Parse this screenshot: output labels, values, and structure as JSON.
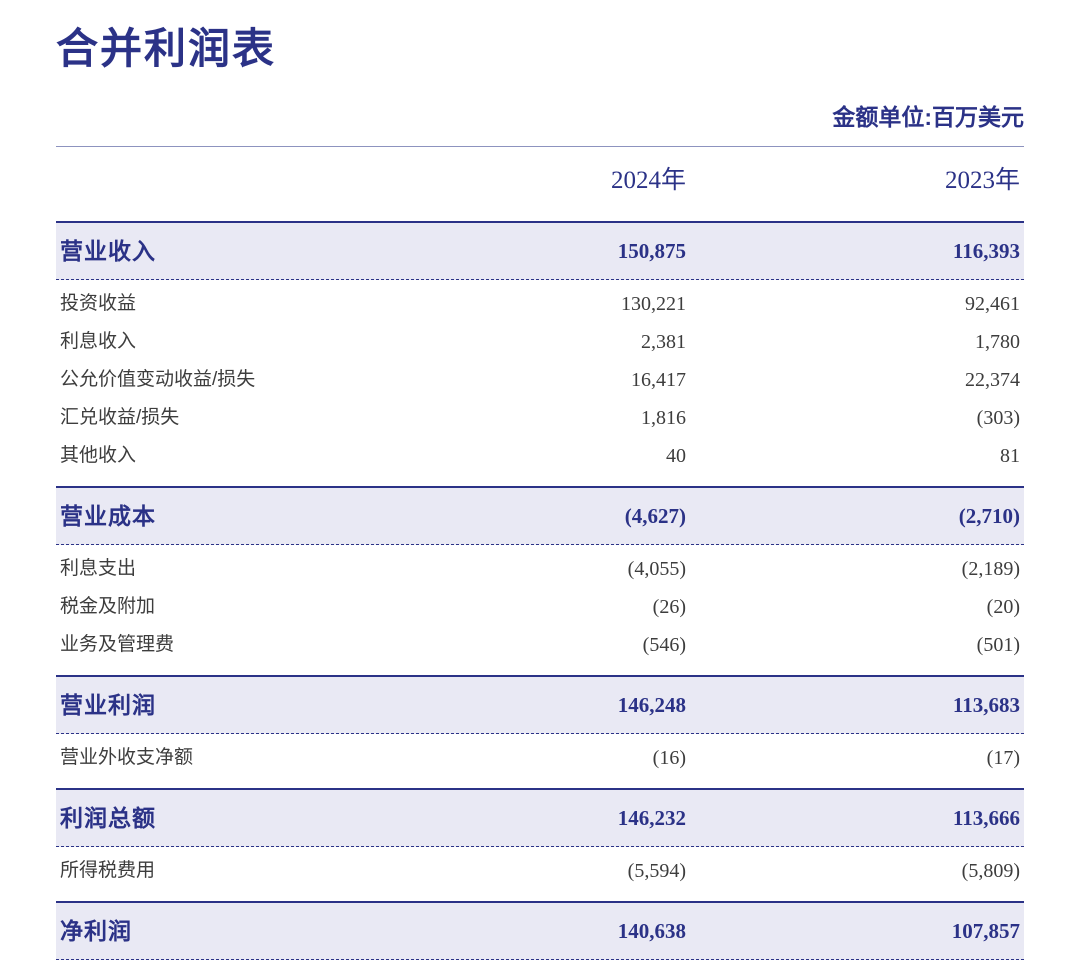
{
  "header": {
    "title": "合并利润表",
    "unit_note": "金额单位:百万美元"
  },
  "table": {
    "columns": {
      "col_2024": "2024年",
      "col_2023": "2023年"
    },
    "rows": [
      {
        "label": "营业收入",
        "y2024": "150,875",
        "y2023": "116,393",
        "highlight": true
      },
      {
        "label": "投资收益",
        "y2024": "130,221",
        "y2023": "92,461",
        "highlight": false
      },
      {
        "label": "利息收入",
        "y2024": "2,381",
        "y2023": "1,780",
        "highlight": false
      },
      {
        "label": "公允价值变动收益/损失",
        "y2024": "16,417",
        "y2023": "22,374",
        "highlight": false
      },
      {
        "label": "汇兑收益/损失",
        "y2024": "1,816",
        "y2023": "(303)",
        "highlight": false
      },
      {
        "label": "其他收入",
        "y2024": "40",
        "y2023": "81",
        "highlight": false
      },
      {
        "label": "营业成本",
        "y2024": "(4,627)",
        "y2023": "(2,710)",
        "highlight": true
      },
      {
        "label": "利息支出",
        "y2024": "(4,055)",
        "y2023": "(2,189)",
        "highlight": false
      },
      {
        "label": "税金及附加",
        "y2024": "(26)",
        "y2023": "(20)",
        "highlight": false
      },
      {
        "label": "业务及管理费",
        "y2024": "(546)",
        "y2023": "(501)",
        "highlight": false
      },
      {
        "label": "营业利润",
        "y2024": "146,248",
        "y2023": "113,683",
        "highlight": true
      },
      {
        "label": "营业外收支净额",
        "y2024": "(16)",
        "y2023": "(17)",
        "highlight": false
      },
      {
        "label": "利润总额",
        "y2024": "146,232",
        "y2023": "113,666",
        "highlight": true
      },
      {
        "label": "所得税费用",
        "y2024": "(5,594)",
        "y2023": "(5,809)",
        "highlight": false
      },
      {
        "label": "净利润",
        "y2024": "140,638",
        "y2023": "107,857",
        "highlight": true
      }
    ]
  },
  "colors": {
    "navy": "#2b3287",
    "row_bg": "#e9e9f4",
    "text": "#3d3d3d",
    "rule": "#8d93bf"
  }
}
